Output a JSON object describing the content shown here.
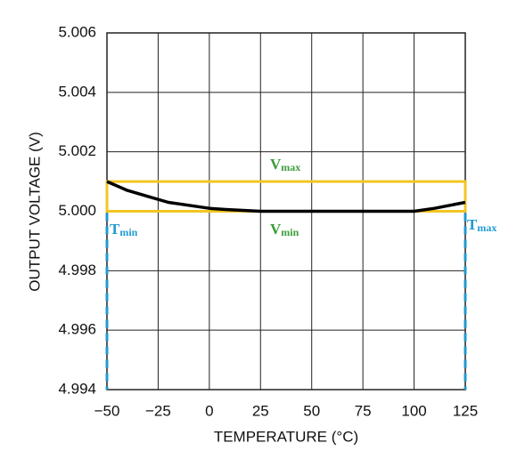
{
  "chart_data": {
    "type": "line",
    "x_label": "TEMPERATURE (°C)",
    "y_label": "OUTPUT VOLTAGE (V)",
    "x": [
      -50,
      -40,
      -30,
      -20,
      -10,
      0,
      10,
      25,
      50,
      75,
      100,
      110,
      125
    ],
    "values": [
      5.001,
      5.0007,
      5.0005,
      5.0003,
      5.0002,
      5.0001,
      5.00005,
      5.0,
      5.0,
      5.0,
      5.0,
      5.0001,
      5.0003
    ],
    "color": "#000000",
    "xlim": [
      -50,
      125
    ],
    "xticks": [
      {
        "value": -50,
        "label": "−50"
      },
      {
        "value": -25,
        "label": "−25"
      },
      0,
      25,
      50,
      75,
      100,
      125
    ],
    "ylim": [
      4.994,
      5.006
    ],
    "yticks": [
      4.994,
      4.996,
      4.998,
      {
        "value": 5.0,
        "label": "5.000"
      },
      5.002,
      5.004,
      5.006
    ],
    "grid": true,
    "box": {
      "x": [
        -50,
        125
      ],
      "y": [
        5.0,
        5.001
      ],
      "color": "#f2c522",
      "limit_color": "#1f9bd1"
    },
    "annotations": [
      {
        "text": "V",
        "sub": "max",
        "color": "#3a9d3a"
      },
      {
        "text": "V",
        "sub": "min",
        "color": "#3a9d3a"
      },
      {
        "text": "T",
        "sub": "min",
        "color": "#1f9bd1"
      },
      {
        "text": "T",
        "sub": "max",
        "color": "#1f9bd1"
      }
    ]
  }
}
